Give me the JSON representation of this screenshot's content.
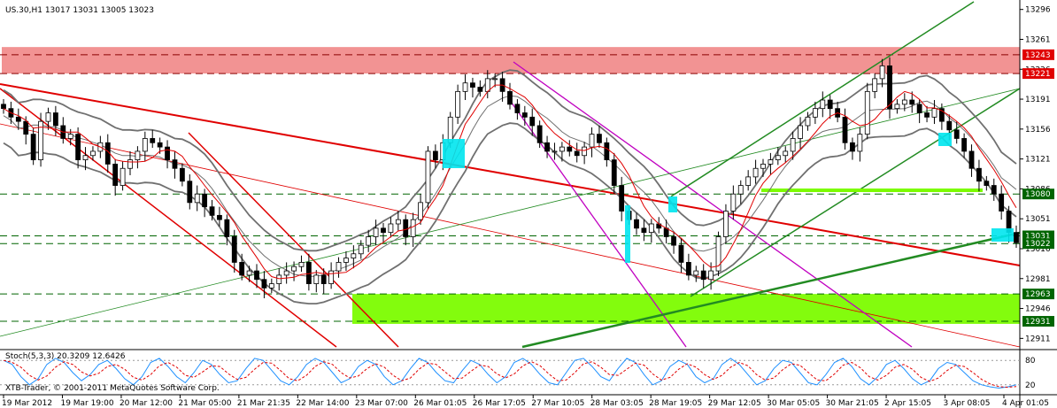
{
  "header": {
    "symbol_label": "US.30,H1  13017 13031 13005 13023",
    "stoch_label": "Stoch(5,3,3) 20.3209 12.6426",
    "copyright": "XTB-Trader, © 2001-2011 MetaQuotes Software Corp."
  },
  "colors": {
    "resistance_zone": "#f08080",
    "support_zone": "#7cfc00",
    "channel_red": "#e00000",
    "channel_green": "#228b22",
    "channel_magenta": "#c000c0",
    "bollinger": "#707070",
    "ma": "#e00000",
    "candle": "#000000",
    "highlight": "#00e5ee",
    "stoch_main": "#1e90ff",
    "stoch_signal": "#e00000",
    "label_red": "#e00000",
    "label_green": "#006400"
  },
  "chart_data": {
    "type": "candlestick",
    "title": "US.30,H1",
    "ohlc": {
      "open": 13017,
      "high": 13031,
      "low": 13005,
      "close": 13023
    },
    "ylim": [
      12901,
      13305
    ],
    "y_ticks": [
      13296,
      13261,
      13226,
      13191,
      13156,
      13121,
      13086,
      13051,
      13016,
      12981,
      12946,
      12911
    ],
    "x_ticks": [
      "19 Mar 2012",
      "19 Mar 19:00",
      "20 Mar 12:00",
      "21 Mar 05:00",
      "21 Mar 21:35",
      "22 Mar 14:00",
      "23 Mar 07:00",
      "26 Mar 01:05",
      "26 Mar 17:05",
      "27 Mar 10:05",
      "28 Mar 03:05",
      "28 Mar 19:05",
      "29 Mar 12:05",
      "30 Mar 05:05",
      "30 Mar 21:05",
      "2 Apr 15:05",
      "3 Apr 08:05",
      "4 Apr 01:05"
    ],
    "price_levels": [
      {
        "value": 13243,
        "label": "13243",
        "style": "red"
      },
      {
        "value": 13221,
        "label": "13221",
        "style": "red"
      },
      {
        "value": 13080,
        "label": "13080",
        "style": "green"
      },
      {
        "value": 13031,
        "label": "13031",
        "style": "green"
      },
      {
        "value": 13022,
        "label": "13022",
        "style": "green"
      },
      {
        "value": 12963,
        "label": "12963",
        "style": "green"
      },
      {
        "value": 12931,
        "label": "12931",
        "style": "green"
      }
    ],
    "zones": [
      {
        "name": "resistance",
        "from": 13221,
        "to": 13252
      },
      {
        "name": "support",
        "from": 12928,
        "to": 12963
      }
    ],
    "close_path": [
      13180,
      13170,
      13165,
      13150,
      13120,
      13165,
      13175,
      13160,
      13145,
      13150,
      13120,
      13125,
      13130,
      13140,
      13115,
      13090,
      13110,
      13120,
      13130,
      13145,
      13140,
      13135,
      13120,
      13110,
      13095,
      13070,
      13080,
      13065,
      13055,
      13050,
      13030,
      13000,
      12985,
      12990,
      12980,
      12970,
      12975,
      12985,
      12990,
      12995,
      13000,
      12975,
      12985,
      12975,
      12990,
      13000,
      13005,
      13010,
      13020,
      13030,
      13040,
      13035,
      13045,
      13050,
      13030,
      13050,
      13070,
      13130,
      13120,
      13140,
      13170,
      13200,
      13210,
      13205,
      13200,
      13215,
      13215,
      13200,
      13185,
      13175,
      13170,
      13160,
      13140,
      13130,
      13130,
      13135,
      13130,
      13125,
      13135,
      13150,
      13140,
      13120,
      13090,
      13060,
      13050,
      13040,
      13035,
      13045,
      13040,
      13030,
      13020,
      13000,
      12985,
      12990,
      12980,
      12990,
      13030,
      13060,
      13080,
      13090,
      13100,
      13110,
      13115,
      13120,
      13125,
      13130,
      13145,
      13160,
      13170,
      13180,
      13190,
      13180,
      13170,
      13140,
      13130,
      13150,
      13200,
      13215,
      13230,
      13180,
      13185,
      13190,
      13185,
      13175,
      13170,
      13180,
      13165,
      13155,
      13145,
      13130,
      13110,
      13095,
      13090,
      13080,
      13060,
      13035,
      13023
    ],
    "stoch_ylim": [
      0,
      100
    ],
    "stoch_ticks": [
      80,
      20
    ],
    "stoch_main": [
      80,
      70,
      40,
      20,
      35,
      70,
      85,
      75,
      50,
      30,
      45,
      70,
      80,
      60,
      35,
      20,
      40,
      75,
      85,
      65,
      40,
      25,
      50,
      80,
      70,
      45,
      25,
      30,
      60,
      85,
      80,
      55,
      30,
      20,
      40,
      70,
      85,
      75,
      50,
      25,
      35,
      65,
      80,
      70,
      40,
      20,
      30,
      60,
      85,
      75,
      50,
      30,
      25,
      55,
      80,
      70,
      45,
      25,
      40,
      75,
      85,
      70,
      45,
      25,
      20,
      50,
      80,
      85,
      65,
      40,
      30,
      60,
      85,
      75,
      45,
      20,
      30,
      65,
      80,
      70,
      40,
      25,
      35,
      70,
      85,
      70,
      45,
      20,
      30,
      60,
      80,
      75,
      50,
      25,
      20,
      45,
      75,
      85,
      65,
      35,
      20,
      40,
      70,
      80,
      60,
      35,
      20,
      30,
      60,
      75,
      70,
      50,
      30,
      20,
      15,
      12,
      15,
      20
    ]
  }
}
